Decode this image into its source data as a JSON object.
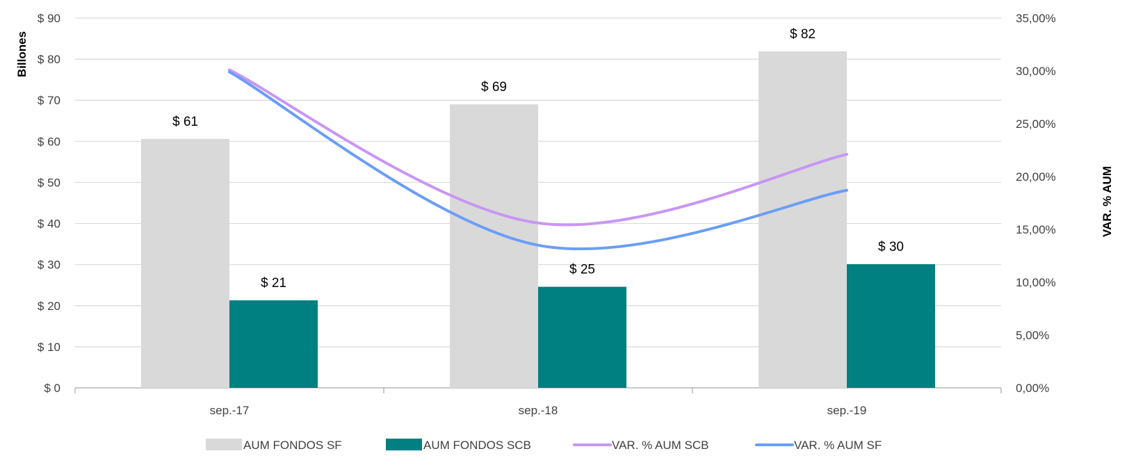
{
  "chart_data": {
    "type": "bar",
    "categories": [
      "sep.-17",
      "sep.-18",
      "sep.-19"
    ],
    "series": [
      {
        "name": "AUM FONDOS SF",
        "kind": "bar",
        "axis": "left",
        "color": "#d9d9d9",
        "values": [
          60.6,
          69.0,
          81.9
        ],
        "labels": [
          "$ 61",
          "$ 69",
          "$ 82"
        ]
      },
      {
        "name": "AUM FONDOS SCB",
        "kind": "bar",
        "axis": "left",
        "color": "#008080",
        "values": [
          21.3,
          24.6,
          30.1
        ],
        "labels": [
          "$ 21",
          "$ 25",
          "$ 30"
        ]
      },
      {
        "name": "VAR. % AUM SCB",
        "kind": "line",
        "axis": "right",
        "color": "#c896f5",
        "values": [
          30.1,
          15.6,
          22.1
        ]
      },
      {
        "name": "VAR. % AUM SF",
        "kind": "line",
        "axis": "right",
        "color": "#6a9ef7",
        "values": [
          29.9,
          13.5,
          18.7
        ]
      }
    ],
    "y_left": {
      "label": "Billones",
      "min": 0,
      "max": 90,
      "ticks": [
        "$ 0",
        "$ 10",
        "$ 20",
        "$ 30",
        "$ 40",
        "$ 50",
        "$ 60",
        "$ 70",
        "$ 80",
        "$ 90"
      ]
    },
    "y_right": {
      "label": "VAR. % AUM",
      "min": 0,
      "max": 35,
      "ticks": [
        "0,00%",
        "5,00%",
        "10,00%",
        "15,00%",
        "20,00%",
        "25,00%",
        "30,00%",
        "35,00%"
      ]
    },
    "grid": true,
    "legend_position": "bottom"
  }
}
